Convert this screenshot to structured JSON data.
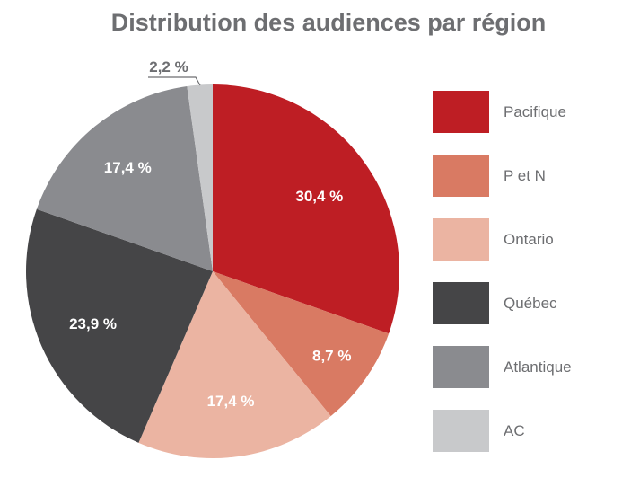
{
  "chart_data": {
    "type": "pie",
    "title": "Distribution des audiences par région",
    "categories": [
      "Pacifique",
      "P et N",
      "Ontario",
      "Québec",
      "Atlantique",
      "AC"
    ],
    "values": [
      30.4,
      8.7,
      17.4,
      23.9,
      17.4,
      2.2
    ],
    "data_labels": [
      "30,4 %",
      "8,7 %",
      "17,4 %",
      "23,9 %",
      "17,4 %",
      "2,2 %"
    ],
    "colors": [
      "#be1e24",
      "#d97a63",
      "#ebb4a2",
      "#454547",
      "#8a8b8f",
      "#c8c9cb"
    ],
    "start": "top",
    "direction": "clockwise",
    "legend_position": "right"
  }
}
